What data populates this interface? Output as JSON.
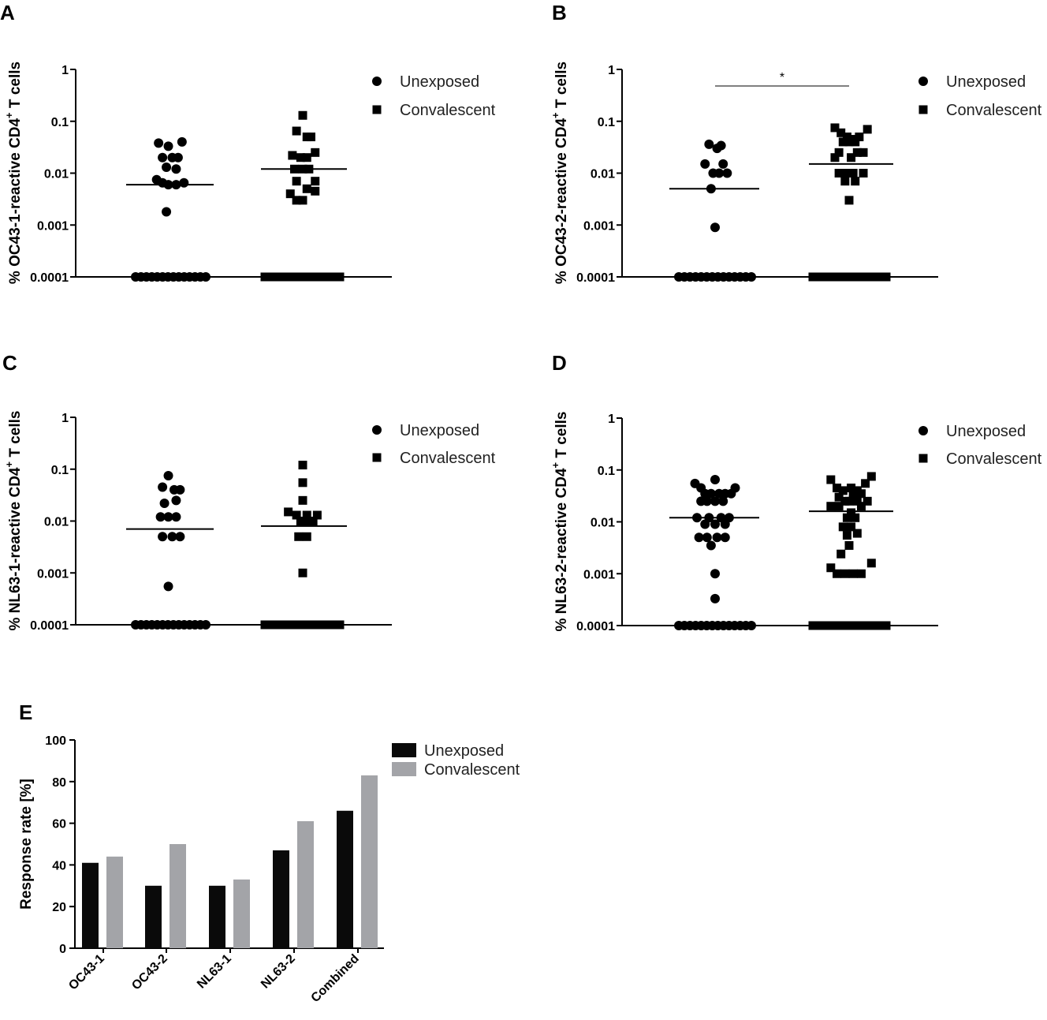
{
  "chart_data": [
    {
      "panel": "A",
      "type": "scatter",
      "scale": "log",
      "ylabel_prefix": "% OC43-1-reactive CD4",
      "ylabel_sup": "+",
      "ylabel_suffix": " T cells",
      "ylim": [
        0.0001,
        1
      ],
      "yticks": [
        "1",
        "0.1",
        "0.01",
        "0.001",
        "0.0001"
      ],
      "legend": [
        "Unexposed",
        "Convalescent"
      ],
      "significance": "",
      "series": [
        {
          "name": "Unexposed",
          "marker": "circle",
          "median": 0.006,
          "points": [
            [
              -0.3,
              0.038
            ],
            [
              0.3,
              0.04
            ],
            [
              -0.05,
              0.033
            ],
            [
              -0.2,
              0.02
            ],
            [
              0.05,
              0.02
            ],
            [
              0.2,
              0.02
            ],
            [
              -0.1,
              0.013
            ],
            [
              0.15,
              0.012
            ],
            [
              -0.35,
              0.0075
            ],
            [
              -0.2,
              0.0065
            ],
            [
              0.35,
              0.0065
            ],
            [
              -0.05,
              0.006
            ],
            [
              0.15,
              0.006
            ],
            [
              -0.1,
              0.0018
            ]
          ],
          "zero_count": 14
        },
        {
          "name": "Convalescent",
          "marker": "square",
          "median": 0.012,
          "points": [
            [
              0,
              0.13
            ],
            [
              -0.15,
              0.065
            ],
            [
              0.1,
              0.05
            ],
            [
              0.2,
              0.05
            ],
            [
              -0.25,
              0.022
            ],
            [
              0.3,
              0.025
            ],
            [
              -0.05,
              0.02
            ],
            [
              0.1,
              0.02
            ],
            [
              -0.2,
              0.012
            ],
            [
              0,
              0.012
            ],
            [
              0.15,
              0.012
            ],
            [
              -0.15,
              0.007
            ],
            [
              0.3,
              0.007
            ],
            [
              -0.3,
              0.004
            ],
            [
              0.1,
              0.005
            ],
            [
              0.3,
              0.0045
            ],
            [
              -0.15,
              0.003
            ],
            [
              0,
              0.003
            ]
          ],
          "zero_count": 14
        }
      ]
    },
    {
      "panel": "B",
      "type": "scatter",
      "scale": "log",
      "ylabel_prefix": "% OC43-2-reactive CD4",
      "ylabel_sup": "+",
      "ylabel_suffix": " T cells",
      "ylim": [
        0.0001,
        1
      ],
      "yticks": [
        "1",
        "0.1",
        "0.01",
        "0.001",
        "0.0001"
      ],
      "legend": [
        "Unexposed",
        "Convalescent"
      ],
      "significance": "*",
      "series": [
        {
          "name": "Unexposed",
          "marker": "circle",
          "median": 0.005,
          "points": [
            [
              -0.15,
              0.036
            ],
            [
              0.05,
              0.03
            ],
            [
              0.15,
              0.034
            ],
            [
              -0.25,
              0.015
            ],
            [
              0.2,
              0.015
            ],
            [
              -0.05,
              0.01
            ],
            [
              0.1,
              0.01
            ],
            [
              0.3,
              0.01
            ],
            [
              -0.1,
              0.005
            ],
            [
              0,
              0.0009
            ]
          ],
          "zero_count": 14
        },
        {
          "name": "Convalescent",
          "marker": "square",
          "median": 0.015,
          "points": [
            [
              -0.35,
              0.075
            ],
            [
              0.45,
              0.07
            ],
            [
              -0.2,
              0.06
            ],
            [
              -0.05,
              0.05
            ],
            [
              0.1,
              0.045
            ],
            [
              0.25,
              0.05
            ],
            [
              -0.15,
              0.04
            ],
            [
              0,
              0.04
            ],
            [
              0.15,
              0.04
            ],
            [
              -0.25,
              0.025
            ],
            [
              0.2,
              0.025
            ],
            [
              -0.35,
              0.02
            ],
            [
              0.05,
              0.02
            ],
            [
              0.35,
              0.025
            ],
            [
              -0.25,
              0.01
            ],
            [
              -0.05,
              0.01
            ],
            [
              0.1,
              0.01
            ],
            [
              0.35,
              0.01
            ],
            [
              -0.1,
              0.007
            ],
            [
              0.15,
              0.007
            ],
            [
              0,
              0.003
            ]
          ],
          "zero_count": 14
        }
      ]
    },
    {
      "panel": "C",
      "type": "scatter",
      "scale": "log",
      "ylabel_prefix": "% NL63-1-reactive CD4",
      "ylabel_sup": "+",
      "ylabel_suffix": " T cells",
      "ylim": [
        0.0001,
        1
      ],
      "yticks": [
        "1",
        "0.1",
        "0.01",
        "0.001",
        "0.0001"
      ],
      "legend": [
        "Unexposed",
        "Convalescent"
      ],
      "significance": "",
      "series": [
        {
          "name": "Unexposed",
          "marker": "circle",
          "median": 0.007,
          "points": [
            [
              -0.05,
              0.075
            ],
            [
              -0.2,
              0.045
            ],
            [
              0.1,
              0.04
            ],
            [
              0.25,
              0.04
            ],
            [
              -0.15,
              0.022
            ],
            [
              0.15,
              0.025
            ],
            [
              -0.25,
              0.012
            ],
            [
              -0.05,
              0.012
            ],
            [
              0.15,
              0.012
            ],
            [
              -0.2,
              0.005
            ],
            [
              0.05,
              0.005
            ],
            [
              0.25,
              0.005
            ],
            [
              -0.05,
              0.00055
            ]
          ],
          "zero_count": 14
        },
        {
          "name": "Convalescent",
          "marker": "square",
          "median": 0.008,
          "points": [
            [
              0,
              0.12
            ],
            [
              0,
              0.055
            ],
            [
              0,
              0.025
            ],
            [
              -0.35,
              0.015
            ],
            [
              -0.15,
              0.013
            ],
            [
              0.1,
              0.013
            ],
            [
              0.35,
              0.013
            ],
            [
              -0.05,
              0.01
            ],
            [
              0.05,
              0.01
            ],
            [
              0.25,
              0.01
            ],
            [
              -0.1,
              0.005
            ],
            [
              0.1,
              0.005
            ],
            [
              0,
              0.001
            ]
          ],
          "zero_count": 14
        }
      ]
    },
    {
      "panel": "D",
      "type": "scatter",
      "scale": "log",
      "ylabel_prefix": "% NL63-2-reactive CD4",
      "ylabel_sup": "+",
      "ylabel_suffix": " T cells",
      "ylim": [
        0.0001,
        1
      ],
      "yticks": [
        "1",
        "0.1",
        "0.01",
        "0.001",
        "0.0001"
      ],
      "legend": [
        "Unexposed",
        "Convalescent"
      ],
      "significance": "",
      "series": [
        {
          "name": "Unexposed",
          "marker": "circle",
          "median": 0.012,
          "points": [
            [
              -0.5,
              0.055
            ],
            [
              0,
              0.065
            ],
            [
              -0.35,
              0.045
            ],
            [
              0.5,
              0.045
            ],
            [
              -0.25,
              0.035
            ],
            [
              -0.1,
              0.035
            ],
            [
              0.1,
              0.035
            ],
            [
              0.25,
              0.035
            ],
            [
              0.4,
              0.035
            ],
            [
              -0.35,
              0.025
            ],
            [
              -0.2,
              0.025
            ],
            [
              0,
              0.025
            ],
            [
              0.2,
              0.025
            ],
            [
              -0.45,
              0.012
            ],
            [
              -0.15,
              0.012
            ],
            [
              0.15,
              0.012
            ],
            [
              0.35,
              0.012
            ],
            [
              -0.25,
              0.009
            ],
            [
              0,
              0.009
            ],
            [
              0.25,
              0.009
            ],
            [
              -0.4,
              0.005
            ],
            [
              -0.2,
              0.005
            ],
            [
              0.05,
              0.005
            ],
            [
              0.25,
              0.005
            ],
            [
              -0.1,
              0.0035
            ],
            [
              0,
              0.001
            ],
            [
              0,
              0.00033
            ]
          ],
          "zero_count": 14
        },
        {
          "name": "Convalescent",
          "marker": "square",
          "median": 0.016,
          "points": [
            [
              -0.45,
              0.065
            ],
            [
              0.55,
              0.075
            ],
            [
              -0.3,
              0.045
            ],
            [
              -0.15,
              0.04
            ],
            [
              0.05,
              0.045
            ],
            [
              0.2,
              0.04
            ],
            [
              0.4,
              0.055
            ],
            [
              -0.25,
              0.03
            ],
            [
              0.1,
              0.035
            ],
            [
              0.3,
              0.035
            ],
            [
              -0.1,
              0.025
            ],
            [
              0,
              0.025
            ],
            [
              0.2,
              0.025
            ],
            [
              -0.45,
              0.02
            ],
            [
              -0.25,
              0.02
            ],
            [
              0.05,
              0.015
            ],
            [
              0.3,
              0.02
            ],
            [
              0.45,
              0.025
            ],
            [
              -0.05,
              0.012
            ],
            [
              0.15,
              0.012
            ],
            [
              -0.15,
              0.008
            ],
            [
              0.05,
              0.008
            ],
            [
              0.2,
              0.006
            ],
            [
              -0.05,
              0.0055
            ],
            [
              0,
              0.0035
            ],
            [
              -0.2,
              0.0024
            ],
            [
              -0.45,
              0.0013
            ],
            [
              0.55,
              0.0016
            ],
            [
              -0.3,
              0.001
            ],
            [
              -0.1,
              0.001
            ],
            [
              0.1,
              0.001
            ],
            [
              0.3,
              0.001
            ]
          ],
          "zero_count": 14
        }
      ]
    },
    {
      "panel": "E",
      "type": "bar",
      "ylabel": "Response rate [%]",
      "ylim": [
        0,
        100
      ],
      "yticks": [
        "0",
        "20",
        "40",
        "60",
        "80",
        "100"
      ],
      "categories": [
        "OC43-1",
        "OC43-2",
        "NL63-1",
        "NL63-2",
        "Combined"
      ],
      "series": [
        {
          "name": "Unexposed",
          "color": "#0a0a0a",
          "values": [
            41,
            30,
            30,
            47,
            66
          ]
        },
        {
          "name": "Convalescent",
          "color": "#a3a4a8",
          "values": [
            44,
            50,
            33,
            61,
            83
          ]
        }
      ]
    }
  ]
}
